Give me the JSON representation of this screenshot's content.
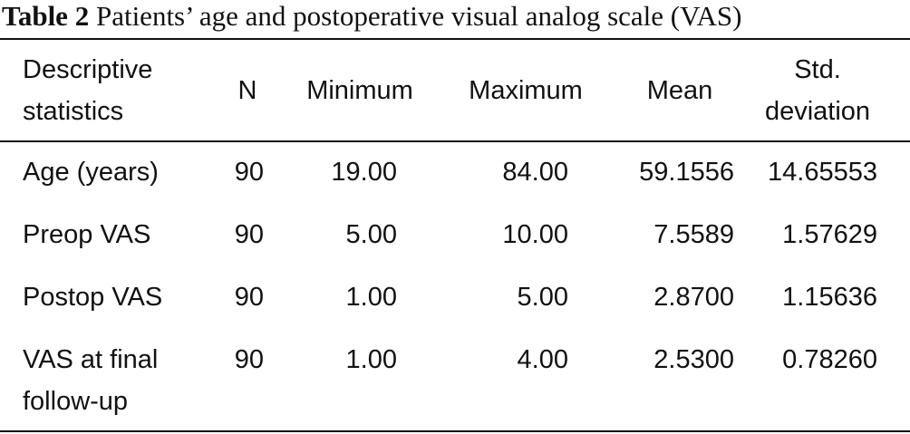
{
  "caption": {
    "label": "Table 2",
    "text": "Patients’ age and postoperative visual analog scale (VAS)"
  },
  "table": {
    "header": [
      "Descriptive statistics",
      "N",
      "Minimum",
      "Maximum",
      "Mean",
      "Std. deviation"
    ],
    "rows": [
      [
        "Age (years)",
        "90",
        "19.00",
        "84.00",
        "59.1556",
        "14.65553"
      ],
      [
        "Preop VAS",
        "90",
        "5.00",
        "10.00",
        "7.5589",
        "1.57629"
      ],
      [
        "Postop VAS",
        "90",
        "1.00",
        "5.00",
        "2.8700",
        "1.15636"
      ],
      [
        "VAS at final follow-up",
        "90",
        "1.00",
        "4.00",
        "2.5300",
        "0.78260"
      ]
    ]
  }
}
